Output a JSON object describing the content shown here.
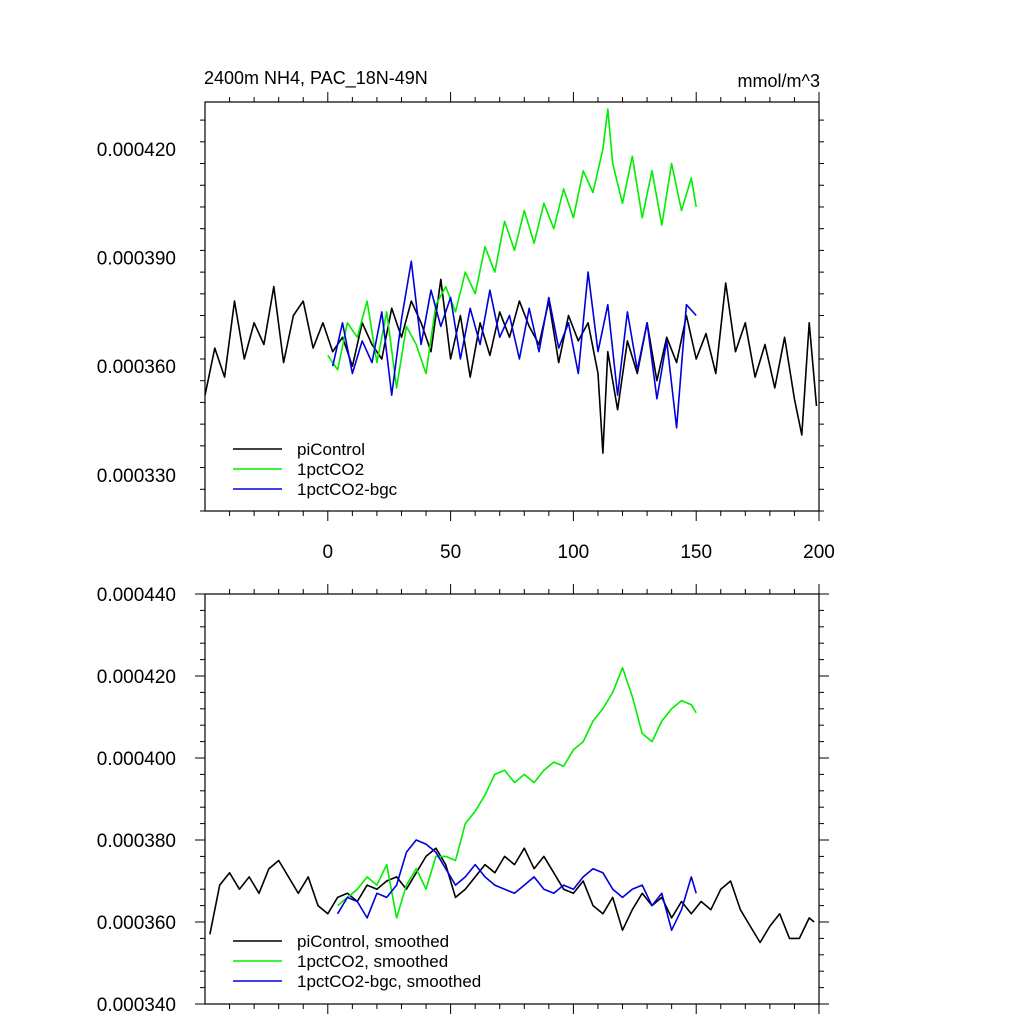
{
  "chart_data": [
    {
      "type": "line",
      "title_left": "2400m NH4, PAC_18N-49N",
      "title_right": "mmol/m^3",
      "xlim": [
        -50,
        200
      ],
      "ylim": [
        0.00032,
        0.000433
      ],
      "x_ticks": [
        0,
        50,
        100,
        150,
        200
      ],
      "x_tick_labels": [
        "0",
        "50",
        "100",
        "150",
        "200"
      ],
      "y_ticks": [
        0.00033,
        0.00036,
        0.00039,
        0.00042
      ],
      "y_tick_labels": [
        "0.000330",
        "0.000360",
        "0.000390",
        "0.000420"
      ],
      "series": [
        {
          "name": "piControl",
          "color": "#000000",
          "x": [
            -50,
            -46,
            -42,
            -38,
            -34,
            -30,
            -26,
            -22,
            -18,
            -14,
            -10,
            -6,
            -2,
            2,
            6,
            10,
            14,
            18,
            22,
            26,
            30,
            34,
            38,
            42,
            46,
            50,
            54,
            58,
            62,
            66,
            70,
            74,
            78,
            82,
            86,
            90,
            94,
            98,
            102,
            106,
            110,
            112,
            114,
            118,
            122,
            126,
            130,
            134,
            138,
            142,
            146,
            150,
            154,
            158,
            162,
            166,
            170,
            174,
            178,
            182,
            186,
            190,
            193,
            196,
            199
          ],
          "y": [
            0.000352,
            0.000365,
            0.000357,
            0.000378,
            0.000362,
            0.000372,
            0.000366,
            0.000382,
            0.000361,
            0.000374,
            0.000378,
            0.000365,
            0.000372,
            0.000364,
            0.000368,
            0.00036,
            0.000372,
            0.000366,
            0.000362,
            0.000376,
            0.000368,
            0.000378,
            0.000372,
            0.000364,
            0.000384,
            0.000362,
            0.000374,
            0.000357,
            0.000372,
            0.000363,
            0.000375,
            0.000368,
            0.000378,
            0.000371,
            0.000366,
            0.000378,
            0.000361,
            0.000374,
            0.000367,
            0.000372,
            0.000358,
            0.000336,
            0.000364,
            0.000348,
            0.000367,
            0.000358,
            0.000372,
            0.000356,
            0.000368,
            0.000361,
            0.000374,
            0.000362,
            0.000369,
            0.000358,
            0.000383,
            0.000364,
            0.000372,
            0.000357,
            0.000366,
            0.000354,
            0.000368,
            0.000351,
            0.000341,
            0.000372,
            0.000349
          ]
        },
        {
          "name": "1pctCO2",
          "color": "#00ee00",
          "x": [
            0,
            4,
            8,
            12,
            16,
            20,
            24,
            28,
            32,
            36,
            40,
            44,
            48,
            52,
            56,
            60,
            64,
            68,
            72,
            76,
            80,
            84,
            88,
            92,
            96,
            100,
            104,
            108,
            112,
            114,
            116,
            120,
            124,
            128,
            132,
            136,
            140,
            144,
            148,
            150
          ],
          "y": [
            0.000363,
            0.000359,
            0.000372,
            0.000368,
            0.000378,
            0.000361,
            0.000375,
            0.000354,
            0.000371,
            0.000366,
            0.000358,
            0.000377,
            0.000382,
            0.000375,
            0.000386,
            0.00038,
            0.000393,
            0.000386,
            0.0004,
            0.000392,
            0.000403,
            0.000394,
            0.000405,
            0.000398,
            0.000409,
            0.000401,
            0.000414,
            0.000408,
            0.00042,
            0.000431,
            0.000416,
            0.000405,
            0.000418,
            0.000401,
            0.000414,
            0.000399,
            0.000416,
            0.000403,
            0.000412,
            0.000404
          ]
        },
        {
          "name": "1pctCO2-bgc",
          "color": "#0000dd",
          "x": [
            2,
            6,
            10,
            14,
            18,
            22,
            26,
            30,
            34,
            38,
            42,
            46,
            50,
            54,
            58,
            62,
            66,
            70,
            74,
            78,
            82,
            86,
            90,
            94,
            98,
            102,
            106,
            110,
            114,
            118,
            122,
            126,
            130,
            134,
            138,
            142,
            146,
            150
          ],
          "y": [
            0.00036,
            0.000372,
            0.000358,
            0.000367,
            0.000361,
            0.000375,
            0.000352,
            0.000373,
            0.000389,
            0.000366,
            0.000381,
            0.000371,
            0.000379,
            0.000362,
            0.000376,
            0.000366,
            0.000381,
            0.000368,
            0.000374,
            0.000362,
            0.000376,
            0.000364,
            0.000379,
            0.000365,
            0.000372,
            0.000358,
            0.000386,
            0.000364,
            0.000377,
            0.000352,
            0.000375,
            0.000359,
            0.000372,
            0.000351,
            0.000367,
            0.000343,
            0.000377,
            0.000374
          ]
        }
      ],
      "legend": [
        "piControl",
        "1pctCO2",
        "1pctCO2-bgc"
      ]
    },
    {
      "type": "line",
      "xlim": [
        -50,
        200
      ],
      "ylim": [
        0.00034,
        0.00044
      ],
      "x_ticks": [
        0,
        50,
        100,
        150,
        200
      ],
      "y_ticks": [
        0.00034,
        0.00036,
        0.00038,
        0.0004,
        0.00042,
        0.00044
      ],
      "y_tick_labels": [
        "0.000340",
        "0.000360",
        "0.000380",
        "0.000400",
        "0.000420",
        "0.000440"
      ],
      "series": [
        {
          "name": "piControl, smoothed",
          "color": "#000000",
          "x": [
            -48,
            -44,
            -40,
            -36,
            -32,
            -28,
            -24,
            -20,
            -16,
            -12,
            -8,
            -4,
            0,
            4,
            8,
            12,
            16,
            20,
            24,
            28,
            32,
            36,
            40,
            44,
            48,
            52,
            56,
            60,
            64,
            68,
            72,
            76,
            80,
            84,
            88,
            92,
            96,
            100,
            104,
            108,
            112,
            116,
            120,
            124,
            128,
            132,
            136,
            140,
            144,
            148,
            152,
            156,
            160,
            164,
            168,
            172,
            176,
            180,
            184,
            188,
            192,
            196,
            198
          ],
          "y": [
            0.000357,
            0.000369,
            0.000372,
            0.000368,
            0.000371,
            0.000367,
            0.000373,
            0.000375,
            0.000371,
            0.000367,
            0.000371,
            0.000364,
            0.000362,
            0.000366,
            0.000367,
            0.000365,
            0.000369,
            0.000368,
            0.00037,
            0.000371,
            0.000368,
            0.000372,
            0.000376,
            0.000378,
            0.000374,
            0.000366,
            0.000368,
            0.000371,
            0.000374,
            0.000372,
            0.000376,
            0.000374,
            0.000378,
            0.000373,
            0.000376,
            0.000372,
            0.000368,
            0.000367,
            0.00037,
            0.000364,
            0.000362,
            0.000366,
            0.000358,
            0.000363,
            0.000367,
            0.000364,
            0.000366,
            0.000361,
            0.000365,
            0.000362,
            0.000365,
            0.000363,
            0.000368,
            0.00037,
            0.000363,
            0.000359,
            0.000355,
            0.000359,
            0.000362,
            0.000356,
            0.000356,
            0.000361,
            0.00036
          ]
        },
        {
          "name": "1pctCO2, smoothed",
          "color": "#00ee00",
          "x": [
            4,
            8,
            12,
            16,
            20,
            24,
            28,
            32,
            36,
            40,
            44,
            48,
            52,
            56,
            60,
            64,
            68,
            72,
            76,
            80,
            84,
            88,
            92,
            96,
            100,
            104,
            108,
            112,
            116,
            120,
            124,
            128,
            132,
            136,
            140,
            144,
            148,
            150
          ],
          "y": [
            0.000364,
            0.000366,
            0.000368,
            0.000371,
            0.000369,
            0.000374,
            0.000361,
            0.000369,
            0.000373,
            0.000368,
            0.000376,
            0.000376,
            0.000375,
            0.000384,
            0.000387,
            0.000391,
            0.000396,
            0.000397,
            0.000394,
            0.000396,
            0.000394,
            0.000397,
            0.000399,
            0.000398,
            0.000402,
            0.000404,
            0.000409,
            0.000412,
            0.000416,
            0.000422,
            0.000415,
            0.000406,
            0.000404,
            0.000409,
            0.000412,
            0.000414,
            0.000413,
            0.000411
          ]
        },
        {
          "name": "1pctCO2-bgc, smoothed",
          "color": "#0000dd",
          "x": [
            4,
            8,
            12,
            16,
            20,
            24,
            28,
            32,
            36,
            40,
            44,
            48,
            52,
            56,
            60,
            64,
            68,
            72,
            76,
            80,
            84,
            88,
            92,
            96,
            100,
            104,
            108,
            112,
            116,
            120,
            124,
            128,
            132,
            136,
            140,
            144,
            148,
            150
          ],
          "y": [
            0.000362,
            0.000366,
            0.000365,
            0.000361,
            0.000367,
            0.000366,
            0.000369,
            0.000377,
            0.00038,
            0.000379,
            0.000377,
            0.000373,
            0.000369,
            0.000371,
            0.000374,
            0.000371,
            0.000369,
            0.000368,
            0.000367,
            0.000369,
            0.000371,
            0.000368,
            0.000367,
            0.000369,
            0.000368,
            0.000371,
            0.000373,
            0.000372,
            0.000368,
            0.000366,
            0.000368,
            0.000369,
            0.000364,
            0.000367,
            0.000358,
            0.000363,
            0.000371,
            0.000367
          ]
        }
      ],
      "legend": [
        "piControl, smoothed",
        "1pctCO2, smoothed",
        "1pctCO2-bgc, smoothed"
      ]
    }
  ]
}
